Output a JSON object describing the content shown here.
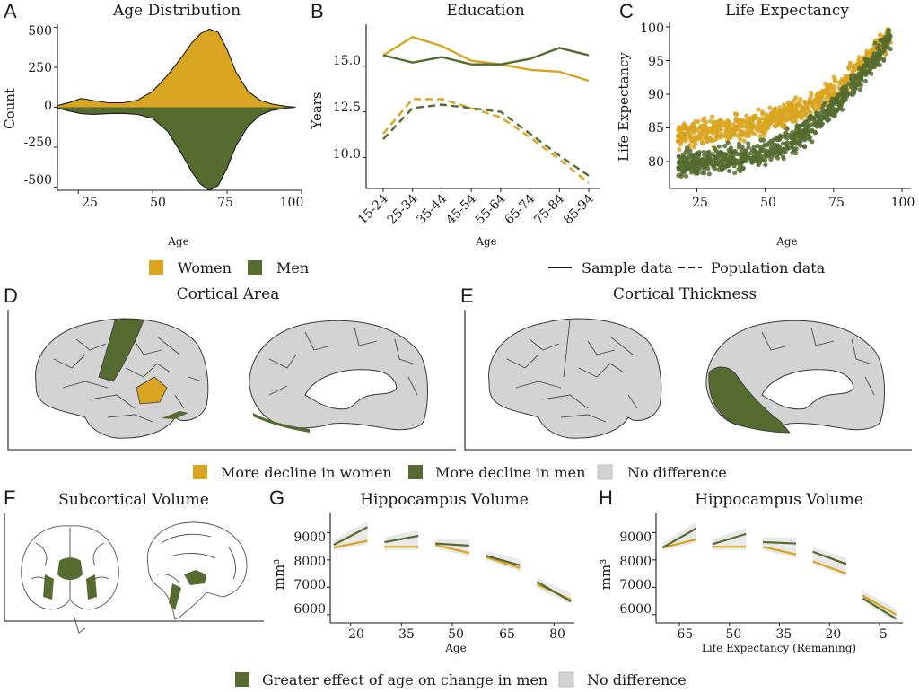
{
  "colors": {
    "women": "#D9A521",
    "men": "#556B2F",
    "none": "#d3d3d3",
    "band": "#cfcfcf"
  },
  "panels": {
    "A": {
      "label": "A",
      "title": "Age Distribution",
      "ylabel": "Count",
      "xlabel": "Age",
      "xticks": [
        "25",
        "50",
        "75",
        "100"
      ],
      "yticks": [
        "500",
        "250",
        "0",
        "-250",
        "-500"
      ]
    },
    "B": {
      "label": "B",
      "title": "Education",
      "ylabel": "Years",
      "xlabel": "Age",
      "yticks": [
        "15.0",
        "12.5",
        "10.0"
      ]
    },
    "C": {
      "label": "C",
      "title": "Life Expectancy",
      "ylabel": "Life Expectancy",
      "xlabel": "Age",
      "xticks": [
        "25",
        "50",
        "75",
        "100"
      ],
      "yticks": [
        "100",
        "95",
        "90",
        "85",
        "80"
      ]
    },
    "D": {
      "label": "D",
      "title": "Cortical Area"
    },
    "E": {
      "label": "E",
      "title": "Cortical Thickness"
    },
    "F": {
      "label": "F",
      "title": "Subcortical Volume"
    },
    "G": {
      "label": "G",
      "title": "Hippocampus Volume",
      "ylabel": "mm³",
      "xlabel": "Age",
      "xticks": [
        "20",
        "35",
        "50",
        "65",
        "80"
      ],
      "yticks": [
        "9000",
        "8000",
        "7000",
        "6000"
      ]
    },
    "H": {
      "label": "H",
      "title": "Hippocampus Volume",
      "ylabel": "mm³",
      "xlabel": "Life Expectancy (Remaning)",
      "xticks": [
        "-65",
        "-50",
        "-35",
        "-20",
        "-5"
      ],
      "yticks": [
        "9000",
        "8000",
        "7000",
        "6000"
      ]
    }
  },
  "legends": {
    "sex": {
      "women": "Women",
      "men": "Men"
    },
    "line": {
      "sample": "Sample data",
      "population": "Population data"
    },
    "cortex": {
      "women": "More decline in women",
      "men": "More decline in men",
      "none": "No difference"
    },
    "hippo": {
      "men": "Greater effect of age on change in men",
      "none": "No difference"
    }
  },
  "chart_data": [
    {
      "panel": "A",
      "type": "area",
      "title": "Age Distribution",
      "xlabel": "Age",
      "ylabel": "Count",
      "xlim": [
        18,
        100
      ],
      "ylim": [
        -520,
        520
      ],
      "series": [
        {
          "name": "Women",
          "x": [
            18,
            22,
            26,
            30,
            35,
            40,
            45,
            50,
            55,
            60,
            63,
            66,
            69,
            72,
            75,
            78,
            82,
            86,
            90,
            95,
            98
          ],
          "values": [
            10,
            30,
            55,
            42,
            28,
            28,
            45,
            100,
            200,
            320,
            400,
            460,
            490,
            470,
            360,
            220,
            100,
            45,
            20,
            5,
            0
          ]
        },
        {
          "name": "Men",
          "x": [
            18,
            22,
            26,
            30,
            35,
            40,
            45,
            50,
            55,
            60,
            63,
            66,
            69,
            72,
            75,
            78,
            82,
            86,
            90,
            95,
            98
          ],
          "values": [
            -5,
            -25,
            -40,
            -45,
            -40,
            -38,
            -45,
            -70,
            -150,
            -300,
            -400,
            -480,
            -520,
            -490,
            -380,
            -240,
            -120,
            -50,
            -20,
            -5,
            0
          ]
        }
      ]
    },
    {
      "panel": "B",
      "type": "line",
      "title": "Education",
      "xlabel": "Age",
      "ylabel": "Years",
      "categories": [
        "15-24",
        "25-34",
        "35-44",
        "45-54",
        "55-64",
        "65-74",
        "75-84",
        "85-94"
      ],
      "ylim": [
        8.3,
        17.3
      ],
      "series": [
        {
          "name": "Women",
          "style": "Sample data",
          "values": [
            15.6,
            16.6,
            16.1,
            15.3,
            15.1,
            14.8,
            14.7,
            14.2
          ]
        },
        {
          "name": "Men",
          "style": "Sample data",
          "values": [
            15.6,
            15.2,
            15.5,
            15.1,
            15.1,
            15.4,
            16.0,
            15.6
          ]
        },
        {
          "name": "Women",
          "style": "Population data",
          "values": [
            11.3,
            13.2,
            13.2,
            12.7,
            12.2,
            11.1,
            9.9,
            8.6
          ]
        },
        {
          "name": "Men",
          "style": "Population data",
          "values": [
            11.0,
            12.7,
            12.9,
            12.7,
            12.5,
            11.3,
            10.1,
            9.0
          ]
        }
      ]
    },
    {
      "panel": "C",
      "type": "scatter",
      "title": "Life Expectancy",
      "xlabel": "Age",
      "ylabel": "Life Expectancy",
      "xlim": [
        15,
        100
      ],
      "ylim": [
        76,
        100
      ],
      "series": [
        {
          "name": "Women",
          "trend": [
            [
              18,
              84
            ],
            [
              30,
              84.5
            ],
            [
              45,
              85.5
            ],
            [
              55,
              86.5
            ],
            [
              65,
              88
            ],
            [
              75,
              90.5
            ],
            [
              85,
              94
            ],
            [
              95,
              98.5
            ]
          ]
        },
        {
          "name": "Men",
          "trend": [
            [
              18,
              79.5
            ],
            [
              30,
              80
            ],
            [
              45,
              81
            ],
            [
              55,
              82
            ],
            [
              65,
              84.5
            ],
            [
              75,
              88
            ],
            [
              85,
              92.5
            ],
            [
              95,
              98
            ]
          ]
        }
      ]
    },
    {
      "panel": "G",
      "type": "line",
      "title": "Hippocampus Volume",
      "xlabel": "Age",
      "ylabel": "mm³",
      "xlim": [
        14,
        86
      ],
      "ylim": [
        5700,
        9700
      ],
      "segments": [
        {
          "x": [
            15,
            25
          ],
          "women": [
            8450,
            8700
          ],
          "men": [
            8550,
            9200
          ]
        },
        {
          "x": [
            30,
            40
          ],
          "women": [
            8480,
            8480
          ],
          "men": [
            8650,
            8880
          ]
        },
        {
          "x": [
            45,
            55
          ],
          "women": [
            8550,
            8250
          ],
          "men": [
            8600,
            8520
          ]
        },
        {
          "x": [
            60,
            70
          ],
          "women": [
            8100,
            7700
          ],
          "men": [
            8150,
            7800
          ]
        },
        {
          "x": [
            75,
            85
          ],
          "women": [
            7100,
            6550
          ],
          "men": [
            7200,
            6480
          ]
        }
      ]
    },
    {
      "panel": "H",
      "type": "line",
      "title": "Hippocampus Volume",
      "xlabel": "Life Expectancy (Remaning)",
      "ylabel": "mm³",
      "xlim": [
        -72,
        2
      ],
      "ylim": [
        5700,
        9700
      ],
      "segments": [
        {
          "x": [
            -70,
            -60
          ],
          "women": [
            8450,
            8750
          ],
          "men": [
            8450,
            9150
          ]
        },
        {
          "x": [
            -55,
            -45
          ],
          "women": [
            8480,
            8480
          ],
          "men": [
            8580,
            8950
          ]
        },
        {
          "x": [
            -40,
            -30
          ],
          "women": [
            8480,
            8200
          ],
          "men": [
            8650,
            8600
          ]
        },
        {
          "x": [
            -25,
            -15
          ],
          "women": [
            7950,
            7500
          ],
          "men": [
            8300,
            7850
          ]
        },
        {
          "x": [
            -10,
            0
          ],
          "women": [
            6700,
            6000
          ],
          "men": [
            6600,
            5850
          ]
        }
      ]
    }
  ]
}
